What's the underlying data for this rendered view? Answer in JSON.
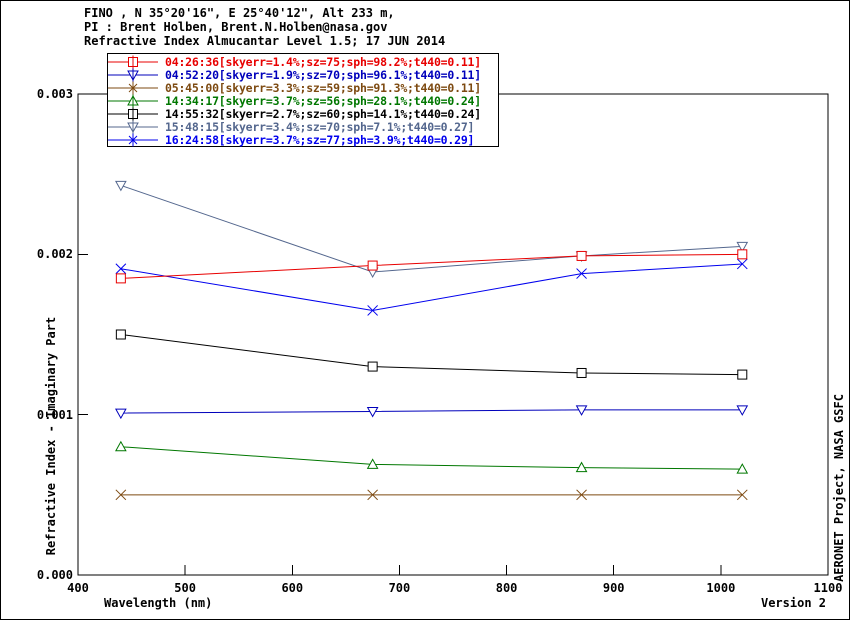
{
  "header": {
    "line1": "FINO , N 35°20'16\", E 25°40'12\", Alt 233 m,",
    "line2": "PI : Brent Holben, Brent.N.Holben@nasa.gov",
    "line3": "Refractive Index Almucantar Level 1.5; 17 JUN 2014"
  },
  "footer": {
    "version": "Version 2"
  },
  "right_margin": {
    "text": "AERONET Project, NASA GSFC"
  },
  "chart_data": {
    "type": "line",
    "title": "Refractive Index Almucantar Level 1.5; 17 JUN 2014",
    "xlabel": "Wavelength (nm)",
    "ylabel": "Refractive Index - Imaginary Part",
    "x": [
      440,
      675,
      870,
      1020
    ],
    "xlim": [
      400,
      1100
    ],
    "ylim": [
      0,
      0.003
    ],
    "x_ticks": [
      400,
      500,
      600,
      700,
      800,
      900,
      1000,
      1100
    ],
    "y_ticks": [
      0,
      0.001,
      0.002,
      0.003
    ],
    "y_tick_labels": [
      "0.000",
      "0.001",
      "0.002",
      "0.003"
    ],
    "grid": false,
    "legend_position": "top-left",
    "axis_color": "#000000",
    "background_color": "#ffffff",
    "series": [
      {
        "label": "04:26:36[skyerr=1.4%;sz=75;sph=98.2%;t440=0.11]",
        "color": "#e80000",
        "marker": "square",
        "values": [
          0.00185,
          0.00193,
          0.00199,
          0.002
        ]
      },
      {
        "label": "04:52:20[skyerr=1.9%;sz=70;sph=96.1%;t440=0.11]",
        "color": "#0000bb",
        "marker": "triangle-down",
        "values": [
          0.00101,
          0.00102,
          0.00103,
          0.00103
        ]
      },
      {
        "label": "05:45:00[skyerr=3.3%;sz=59;sph=91.3%;t440=0.11]",
        "color": "#7d4a11",
        "marker": "x",
        "values": [
          0.0005,
          0.0005,
          0.0005,
          0.0005
        ]
      },
      {
        "label": "14:34:17[skyerr=3.7%;sz=56;sph=28.1%;t440=0.24]",
        "color": "#007700",
        "marker": "triangle-up",
        "values": [
          0.0008,
          0.00069,
          0.00067,
          0.00066
        ]
      },
      {
        "label": "14:55:32[skyerr=2.7%;sz=60;sph=14.1%;t440=0.24]",
        "color": "#000000",
        "marker": "square",
        "values": [
          0.0015,
          0.0013,
          0.00126,
          0.00125
        ]
      },
      {
        "label": "15:48:15[skyerr=3.4%;sz=70;sph=7.1%;t440=0.27]",
        "color": "#54678e",
        "marker": "triangle-down",
        "values": [
          0.00243,
          0.00189,
          0.00199,
          0.00205
        ]
      },
      {
        "label": "16:24:58[skyerr=3.7%;sz=77;sph=3.9%;t440=0.29]",
        "color": "#0000ee",
        "marker": "x",
        "values": [
          0.00191,
          0.00165,
          0.00188,
          0.00194
        ]
      }
    ]
  }
}
